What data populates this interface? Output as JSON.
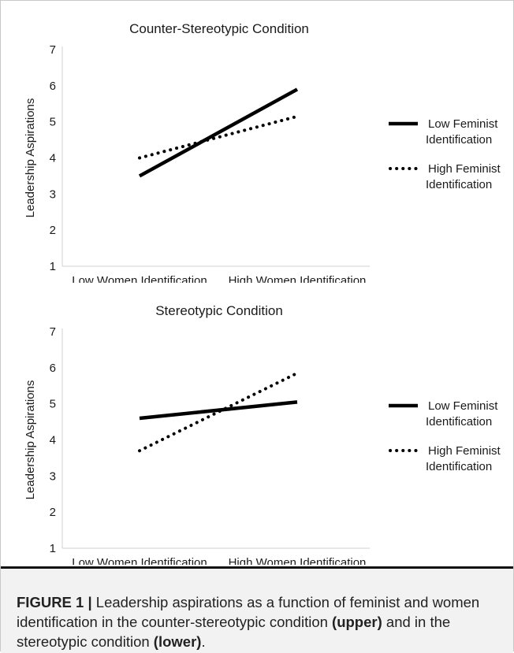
{
  "colors": {
    "line": "#000000",
    "caption_background": "#f2f2f2",
    "caption_rule": "#111111"
  },
  "chart_data": [
    {
      "type": "line",
      "title": "Counter-Stereotypic Condition",
      "xlabel": "",
      "ylabel": "Leadership Aspirations",
      "categories": [
        "Low Women Identification",
        "High Women Identification"
      ],
      "ylim": [
        1,
        7
      ],
      "yticks": [
        "1",
        "2",
        "3",
        "4",
        "5",
        "6",
        "7"
      ],
      "grid": false,
      "legend_position": "right",
      "series": [
        {
          "name": "Low Feminist Identification",
          "style": "solid",
          "values": [
            3.5,
            5.9
          ]
        },
        {
          "name": "High Feminist Identification",
          "style": "dotted",
          "values": [
            4.0,
            5.15
          ]
        }
      ]
    },
    {
      "type": "line",
      "title": "Stereotypic Condition",
      "xlabel": "",
      "ylabel": "Leadership Aspirations",
      "categories": [
        "Low Women Identification",
        "High Women Identification"
      ],
      "ylim": [
        1,
        7
      ],
      "yticks": [
        "1",
        "2",
        "3",
        "4",
        "5",
        "6",
        "7"
      ],
      "grid": false,
      "legend_position": "right",
      "series": [
        {
          "name": "Low Feminist Identification",
          "style": "solid",
          "values": [
            4.6,
            5.05
          ]
        },
        {
          "name": "High Feminist Identification",
          "style": "dotted",
          "values": [
            3.7,
            5.85
          ]
        }
      ]
    }
  ],
  "caption": {
    "label": "FIGURE 1 |",
    "text_1": " Leadership aspirations as a function of feminist and women identification in the counter-stereotypic condition ",
    "upper": "(upper)",
    "text_2": " and in the stereotypic condition ",
    "lower": "(lower)",
    "text_3": "."
  }
}
